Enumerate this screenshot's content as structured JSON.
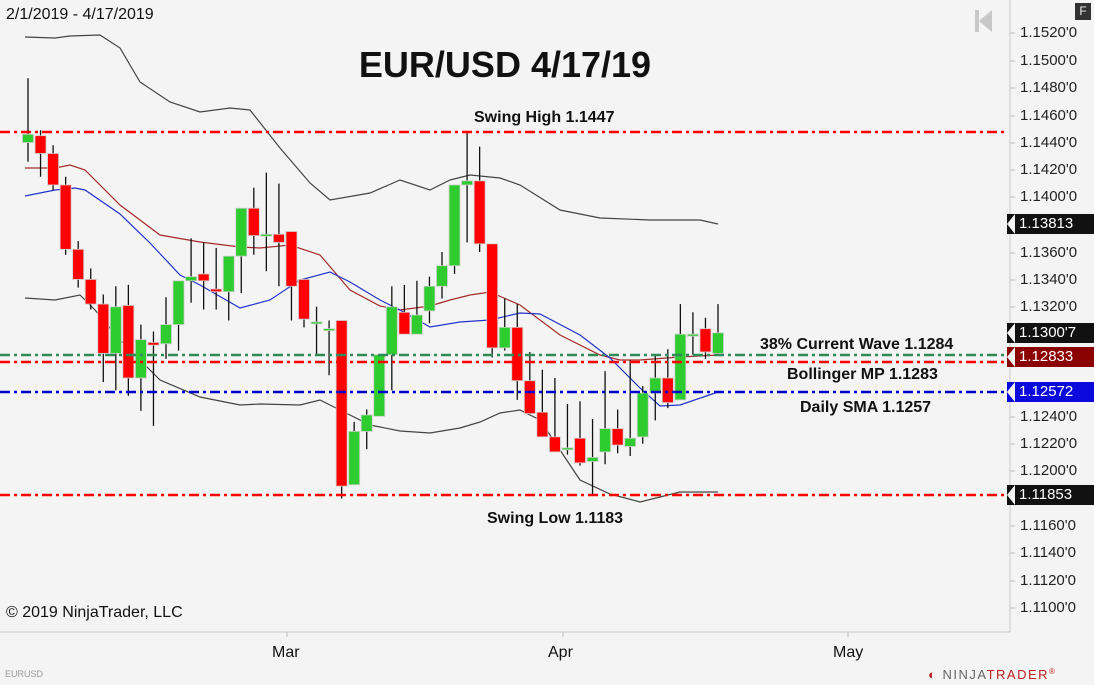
{
  "header": {
    "date_range": "2/1/2019 - 4/17/2019",
    "title": "EUR/USD 4/17/19",
    "f_button": "F"
  },
  "annotations": {
    "swing_high": "Swing High 1.1447",
    "swing_low": "Swing Low 1.1183",
    "current_wave": "38% Current Wave 1.1284",
    "bollinger_mp": "Bollinger MP 1.1283",
    "daily_sma": "Daily SMA 1.1257"
  },
  "y_axis": {
    "ticks": [
      "1.1520'0",
      "1.1500'0",
      "1.1480'0",
      "1.1460'0",
      "1.1440'0",
      "1.1420'0",
      "1.1400'0",
      "1.1360'0",
      "1.1340'0",
      "1.1320'0",
      "1.1240'0",
      "1.1220'0",
      "1.1200'0",
      "1.1160'0",
      "1.1140'0",
      "1.1120'0",
      "1.1100'0"
    ],
    "price_tags": [
      {
        "value": "1.13813",
        "color": "#111111"
      },
      {
        "value": "1.1300'7",
        "color": "#111111"
      },
      {
        "value": "1.12833",
        "color": "#8b0000"
      },
      {
        "value": "1.12572",
        "color": "#0a0adc"
      },
      {
        "value": "1.11853",
        "color": "#111111"
      }
    ]
  },
  "x_axis": {
    "ticks": [
      "Mar",
      "Apr",
      "May"
    ]
  },
  "footer": {
    "copyright": "© 2019 NinjaTrader, LLC",
    "symbol": "EURUSD",
    "brand_a": "NINJA",
    "brand_b": "TRADER",
    "brand_mark": "®"
  },
  "colors": {
    "up_candle": "#2ecc2e",
    "down_candle": "#ff0000",
    "swing_lines": "#ff0000",
    "wave_line": "#2e8b57",
    "sma_line": "#0000cc",
    "bollinger_band": "#444444",
    "bollinger_mid": "#a52a2a",
    "ema": "#2233cc"
  },
  "chart_data": {
    "type": "candlestick",
    "title": "EUR/USD 4/17/19",
    "subtitle": "2/1/2019 - 4/17/2019",
    "xlabel": "",
    "ylabel": "",
    "ylim": [
      1.109,
      1.153
    ],
    "x_ticks": [
      "Mar",
      "Apr",
      "May"
    ],
    "grid": false,
    "candles": [
      {
        "o": 1.144,
        "h": 1.1487,
        "l": 1.1426,
        "c": 1.1446
      },
      {
        "o": 1.1445,
        "h": 1.1449,
        "l": 1.1415,
        "c": 1.1432
      },
      {
        "o": 1.1432,
        "h": 1.1438,
        "l": 1.1405,
        "c": 1.1409
      },
      {
        "o": 1.1409,
        "h": 1.1415,
        "l": 1.1358,
        "c": 1.1362
      },
      {
        "o": 1.1362,
        "h": 1.1368,
        "l": 1.1334,
        "c": 1.134
      },
      {
        "o": 1.134,
        "h": 1.1348,
        "l": 1.1318,
        "c": 1.1322
      },
      {
        "o": 1.1322,
        "h": 1.1329,
        "l": 1.1265,
        "c": 1.1286
      },
      {
        "o": 1.1286,
        "h": 1.1335,
        "l": 1.1259,
        "c": 1.132
      },
      {
        "o": 1.1321,
        "h": 1.1336,
        "l": 1.1255,
        "c": 1.1268
      },
      {
        "o": 1.1268,
        "h": 1.1307,
        "l": 1.1244,
        "c": 1.1296
      },
      {
        "o": 1.1294,
        "h": 1.1302,
        "l": 1.1233,
        "c": 1.1292
      },
      {
        "o": 1.1293,
        "h": 1.1327,
        "l": 1.1282,
        "c": 1.1307
      },
      {
        "o": 1.1307,
        "h": 1.1339,
        "l": 1.1288,
        "c": 1.1339
      },
      {
        "o": 1.1339,
        "h": 1.137,
        "l": 1.1323,
        "c": 1.1342
      },
      {
        "o": 1.1344,
        "h": 1.1367,
        "l": 1.1318,
        "c": 1.1339
      },
      {
        "o": 1.1333,
        "h": 1.1363,
        "l": 1.1318,
        "c": 1.1331
      },
      {
        "o": 1.1331,
        "h": 1.1356,
        "l": 1.131,
        "c": 1.1357
      },
      {
        "o": 1.1357,
        "h": 1.1387,
        "l": 1.133,
        "c": 1.1392
      },
      {
        "o": 1.1392,
        "h": 1.1407,
        "l": 1.1358,
        "c": 1.1372
      },
      {
        "o": 1.1373,
        "h": 1.1418,
        "l": 1.1346,
        "c": 1.1373
      },
      {
        "o": 1.1373,
        "h": 1.141,
        "l": 1.1335,
        "c": 1.1367
      },
      {
        "o": 1.1375,
        "h": 1.1372,
        "l": 1.131,
        "c": 1.1335
      },
      {
        "o": 1.134,
        "h": 1.1335,
        "l": 1.1305,
        "c": 1.1311
      },
      {
        "o": 1.1309,
        "h": 1.132,
        "l": 1.1285,
        "c": 1.1309
      },
      {
        "o": 1.1304,
        "h": 1.131,
        "l": 1.127,
        "c": 1.1304
      },
      {
        "o": 1.131,
        "h": 1.1303,
        "l": 1.118,
        "c": 1.1189
      },
      {
        "o": 1.119,
        "h": 1.1236,
        "l": 1.1195,
        "c": 1.1229
      },
      {
        "o": 1.1229,
        "h": 1.1245,
        "l": 1.1216,
        "c": 1.1241
      },
      {
        "o": 1.124,
        "h": 1.1283,
        "l": 1.1248,
        "c": 1.1285
      },
      {
        "o": 1.1285,
        "h": 1.1335,
        "l": 1.1259,
        "c": 1.132
      },
      {
        "o": 1.1316,
        "h": 1.1336,
        "l": 1.1302,
        "c": 1.13
      },
      {
        "o": 1.13,
        "h": 1.1339,
        "l": 1.13,
        "c": 1.1314
      },
      {
        "o": 1.1317,
        "h": 1.1342,
        "l": 1.1308,
        "c": 1.1335
      },
      {
        "o": 1.1335,
        "h": 1.136,
        "l": 1.1326,
        "c": 1.135
      },
      {
        "o": 1.135,
        "h": 1.1366,
        "l": 1.1344,
        "c": 1.1409
      },
      {
        "o": 1.1409,
        "h": 1.1447,
        "l": 1.1367,
        "c": 1.1412
      },
      {
        "o": 1.1412,
        "h": 1.1437,
        "l": 1.136,
        "c": 1.1366
      },
      {
        "o": 1.1366,
        "h": 1.1338,
        "l": 1.1283,
        "c": 1.129
      },
      {
        "o": 1.129,
        "h": 1.1326,
        "l": 1.1288,
        "c": 1.1305
      },
      {
        "o": 1.1305,
        "h": 1.1322,
        "l": 1.1252,
        "c": 1.1266
      },
      {
        "o": 1.1266,
        "h": 1.1287,
        "l": 1.1242,
        "c": 1.1242
      },
      {
        "o": 1.1243,
        "h": 1.1274,
        "l": 1.1227,
        "c": 1.1225
      },
      {
        "o": 1.1225,
        "h": 1.1268,
        "l": 1.1214,
        "c": 1.1214
      },
      {
        "o": 1.1217,
        "h": 1.1249,
        "l": 1.1212,
        "c": 1.1217
      },
      {
        "o": 1.1224,
        "h": 1.1251,
        "l": 1.1204,
        "c": 1.1206
      },
      {
        "o": 1.1207,
        "h": 1.1238,
        "l": 1.1183,
        "c": 1.121
      },
      {
        "o": 1.1214,
        "h": 1.1273,
        "l": 1.1205,
        "c": 1.1231
      },
      {
        "o": 1.1231,
        "h": 1.1245,
        "l": 1.1213,
        "c": 1.1219
      },
      {
        "o": 1.1218,
        "h": 1.1281,
        "l": 1.1211,
        "c": 1.1224
      },
      {
        "o": 1.1225,
        "h": 1.1262,
        "l": 1.122,
        "c": 1.1257
      },
      {
        "o": 1.1257,
        "h": 1.1285,
        "l": 1.1237,
        "c": 1.1268
      },
      {
        "o": 1.1268,
        "h": 1.1289,
        "l": 1.1246,
        "c": 1.125
      },
      {
        "o": 1.1252,
        "h": 1.1322,
        "l": 1.1252,
        "c": 1.13
      },
      {
        "o": 1.13,
        "h": 1.1316,
        "l": 1.1285,
        "c": 1.13
      },
      {
        "o": 1.1304,
        "h": 1.1312,
        "l": 1.1282,
        "c": 1.1287
      },
      {
        "o": 1.1286,
        "h": 1.1322,
        "l": 1.1285,
        "c": 1.1301
      }
    ],
    "horizontal_lines": [
      {
        "name": "Swing High",
        "value": 1.1447,
        "color": "#ff0000",
        "style": "dash-dot"
      },
      {
        "name": "38% Current Wave",
        "value": 1.1284,
        "color": "#2e8b57",
        "style": "dash-dot"
      },
      {
        "name": "Bollinger MP",
        "value": 1.1283,
        "color": "#ff0000",
        "style": "dash-dot"
      },
      {
        "name": "Daily SMA",
        "value": 1.1257,
        "color": "#0000cc",
        "style": "dash-dot"
      },
      {
        "name": "Swing Low",
        "value": 1.1183,
        "color": "#ff0000",
        "style": "dash-dot"
      }
    ],
    "indicators": {
      "bollinger_upper_last": 1.13813,
      "bollinger_lower_last": 1.11853,
      "bollinger_mid_last": 1.12833,
      "sma_last": 1.12572,
      "last_price": 1.13007
    }
  }
}
